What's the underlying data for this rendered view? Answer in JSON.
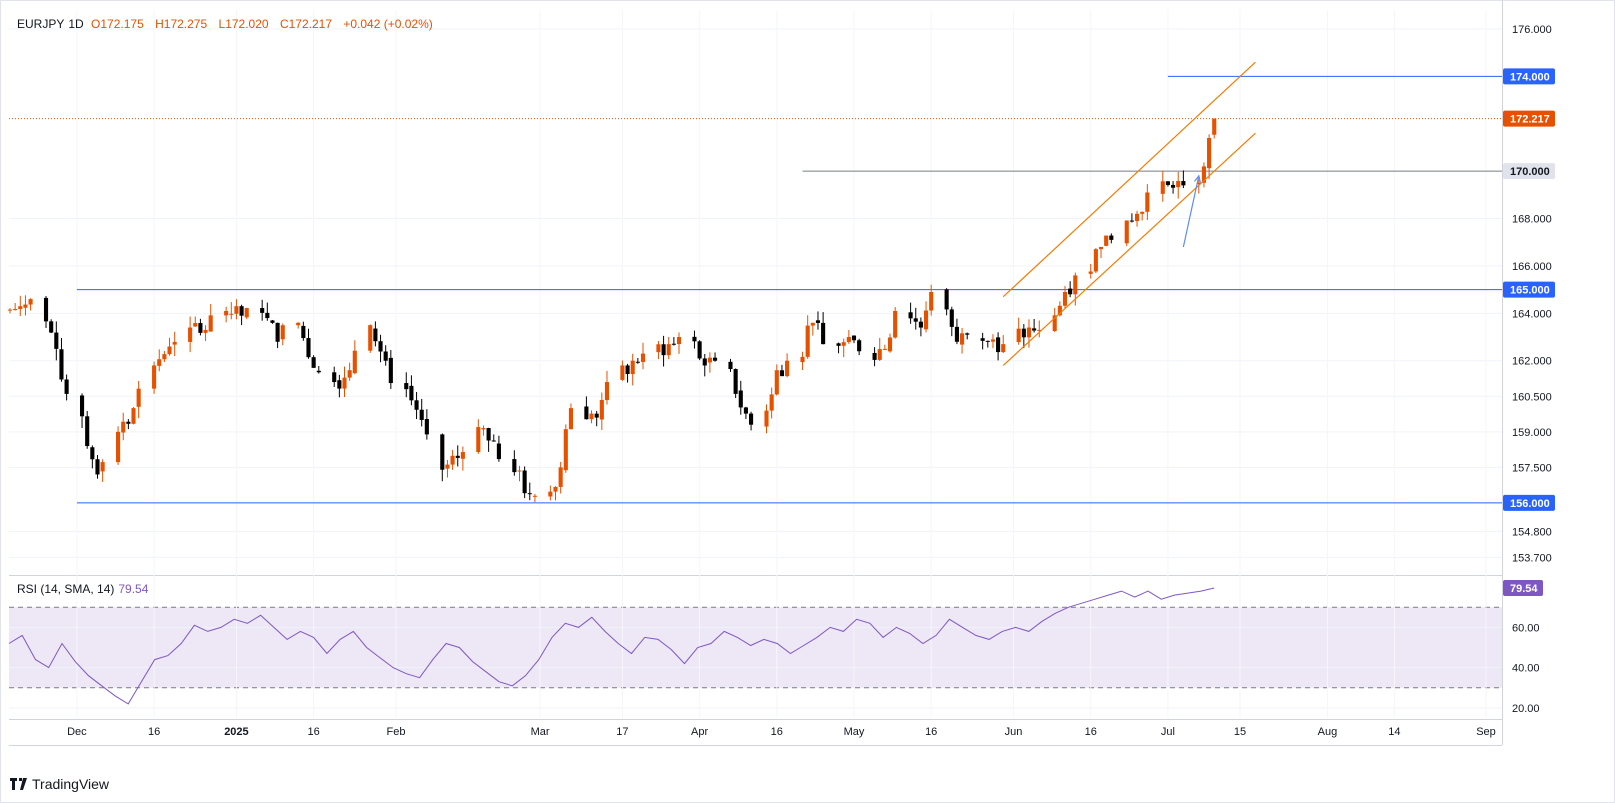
{
  "legend": {
    "symbol": "EURJPY",
    "timeframe": "1D",
    "open": "172.175",
    "high": "172.275",
    "low": "172.020",
    "close": "172.217",
    "change": "+0.042 (+0.02%)"
  },
  "rsi_legend": {
    "label": "RSI (14, SMA, 14)",
    "value": "79.54"
  },
  "brand": "TradingView",
  "colors": {
    "up": "#e65100",
    "down": "#000000",
    "horizontal_line": "#2962ff",
    "channel": "#f57c00",
    "last_price": "#e65100",
    "rsi": "#7e57c2",
    "rsi_band": "#ede7f6"
  },
  "chart_data": [
    {
      "type": "candlestick",
      "ylim": [
        153.0,
        176.8
      ],
      "y_ticks": [
        "176.000",
        "174.000",
        "172.217",
        "170.000",
        "168.000",
        "166.000",
        "165.000",
        "164.000",
        "162.000",
        "160.500",
        "159.000",
        "157.500",
        "156.000",
        "154.800",
        "153.700"
      ],
      "x_ticks": [
        "Dec",
        "16",
        "2025",
        "16",
        "Feb",
        "Mar",
        "17",
        "Apr",
        "16",
        "May",
        "16",
        "Jun",
        "16",
        "Jul",
        "15",
        "Aug",
        "14",
        "Sep"
      ],
      "horizontal_lines": [
        {
          "value": 174.0,
          "label": "174.000",
          "start": "Jul 1"
        },
        {
          "value": 170.0,
          "label": "170.000",
          "start": "Apr 21"
        },
        {
          "value": 165.0,
          "label": "165.000",
          "start": "Dec 1"
        },
        {
          "value": 156.0,
          "label": "156.000",
          "start": "Dec 1"
        }
      ],
      "last_price": {
        "value": 172.217,
        "label": "172.217"
      },
      "channel": {
        "upper": [
          [
            "May 30",
            164.7
          ],
          [
            "Jul 18",
            174.6
          ]
        ],
        "lower": [
          [
            "May 30",
            161.8
          ],
          [
            "Jul 18",
            171.6
          ]
        ]
      },
      "arrow": {
        "from": [
          "Jul 4",
          166.8
        ],
        "to": [
          "Jul 7",
          169.8
        ]
      },
      "series_close": [
        {
          "date": "Nov 18",
          "close": 164.3
        },
        {
          "date": "Nov 21",
          "close": 164.6
        },
        {
          "date": "Nov 25",
          "close": 162.5
        },
        {
          "date": "Nov 28",
          "close": 160.6
        },
        {
          "date": "Dec 2",
          "close": 158.4
        },
        {
          "date": "Dec 4",
          "close": 157.2
        },
        {
          "date": "Dec 6",
          "close": 159.0
        },
        {
          "date": "Dec 10",
          "close": 160.0
        },
        {
          "date": "Dec 13",
          "close": 161.8
        },
        {
          "date": "Dec 17",
          "close": 162.6
        },
        {
          "date": "Dec 20",
          "close": 163.4
        },
        {
          "date": "Dec 24",
          "close": 163.3
        },
        {
          "date": "Dec 27",
          "close": 164.1
        },
        {
          "date": "Dec 31",
          "close": 163.9
        },
        {
          "date": "Jan 3",
          "close": 163.8
        },
        {
          "date": "Jan 8",
          "close": 162.8
        },
        {
          "date": "Jan 10",
          "close": 163.6
        },
        {
          "date": "Jan 14",
          "close": 161.7
        },
        {
          "date": "Jan 17",
          "close": 161.1
        },
        {
          "date": "Jan 21",
          "close": 161.6
        },
        {
          "date": "Jan 24",
          "close": 163.5
        },
        {
          "date": "Jan 28",
          "close": 162.0
        },
        {
          "date": "Jan 31",
          "close": 160.8
        },
        {
          "date": "Feb 4",
          "close": 159.5
        },
        {
          "date": "Feb 7",
          "close": 157.4
        },
        {
          "date": "Feb 11",
          "close": 157.9
        },
        {
          "date": "Feb 14",
          "close": 159.2
        },
        {
          "date": "Feb 18",
          "close": 158.6
        },
        {
          "date": "Feb 21",
          "close": 157.3
        },
        {
          "date": "Feb 25",
          "close": 156.4
        },
        {
          "date": "Feb 28",
          "close": 156.3
        },
        {
          "date": "Mar 3",
          "close": 157.5
        },
        {
          "date": "Mar 6",
          "close": 160.0
        },
        {
          "date": "Mar 10",
          "close": 159.6
        },
        {
          "date": "Mar 13",
          "close": 161.1
        },
        {
          "date": "Mar 17",
          "close": 162.0
        },
        {
          "date": "Mar 20",
          "close": 162.3
        },
        {
          "date": "Mar 24",
          "close": 162.7
        },
        {
          "date": "Mar 27",
          "close": 163.0
        },
        {
          "date": "Mar 31",
          "close": 161.8
        },
        {
          "date": "Apr 3",
          "close": 162.0
        },
        {
          "date": "Apr 7",
          "close": 160.6
        },
        {
          "date": "Apr 9",
          "close": 159.3
        },
        {
          "date": "Apr 14",
          "close": 161.6
        },
        {
          "date": "Apr 17",
          "close": 162.0
        },
        {
          "date": "Apr 21",
          "close": 163.6
        },
        {
          "date": "Apr 24",
          "close": 162.7
        },
        {
          "date": "Apr 28",
          "close": 163.0
        },
        {
          "date": "May 1",
          "close": 162.4
        },
        {
          "date": "May 5",
          "close": 162.5
        },
        {
          "date": "May 8",
          "close": 164.1
        },
        {
          "date": "May 12",
          "close": 163.4
        },
        {
          "date": "May 15",
          "close": 164.9
        },
        {
          "date": "May 19",
          "close": 162.8
        },
        {
          "date": "May 22",
          "close": 163.1
        },
        {
          "date": "May 26",
          "close": 162.9
        },
        {
          "date": "May 29",
          "close": 162.7
        },
        {
          "date": "Jun 2",
          "close": 163.4
        },
        {
          "date": "Jun 5",
          "close": 163.3
        },
        {
          "date": "Jun 9",
          "close": 164.9
        },
        {
          "date": "Jun 12",
          "close": 165.6
        },
        {
          "date": "Jun 16",
          "close": 166.8
        },
        {
          "date": "Jun 19",
          "close": 167.1
        },
        {
          "date": "Jun 23",
          "close": 168.2
        },
        {
          "date": "Jun 26",
          "close": 169.1
        },
        {
          "date": "Jun 30",
          "close": 169.3
        },
        {
          "date": "Jul 3",
          "close": 169.4
        },
        {
          "date": "Jul 7",
          "close": 170.2
        },
        {
          "date": "Jul 9",
          "close": 171.4
        },
        {
          "date": "Jul 10",
          "close": 172.217
        }
      ]
    },
    {
      "type": "line",
      "title": "RSI (14, SMA, 14)",
      "ylim": [
        15,
        85
      ],
      "y_ticks": [
        "60.00",
        "40.00",
        "20.00"
      ],
      "bands": [
        30,
        70
      ],
      "last_value": {
        "value": 79.54,
        "label": "79.54"
      },
      "series": [
        {
          "values": [
            52,
            56,
            44,
            40,
            52,
            43,
            36,
            31,
            26,
            22,
            33,
            44,
            46,
            52,
            61,
            58,
            60,
            64,
            62,
            66,
            60,
            54,
            58,
            55,
            47,
            54,
            58,
            50,
            45,
            40,
            37,
            35,
            44,
            52,
            50,
            43,
            38,
            33,
            31,
            36,
            44,
            55,
            62,
            60,
            65,
            58,
            52,
            47,
            55,
            54,
            49,
            42,
            50,
            52,
            58,
            55,
            51,
            54,
            52,
            47,
            51,
            55,
            60,
            58,
            64,
            62,
            55,
            60,
            57,
            52,
            56,
            64,
            60,
            56,
            54,
            58,
            60,
            58,
            63,
            67,
            70,
            72,
            74,
            76,
            78,
            75,
            78,
            74,
            76,
            77,
            78,
            79.54
          ]
        }
      ]
    }
  ]
}
